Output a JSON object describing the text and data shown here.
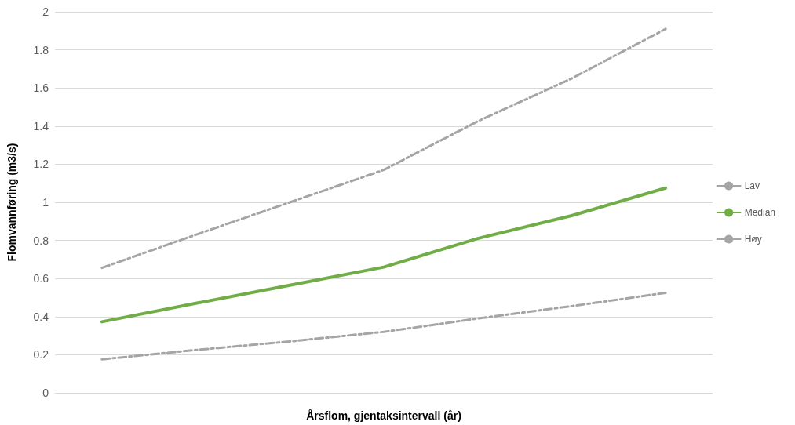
{
  "chart_data": {
    "type": "line",
    "xlabel": "Årsflom, gjentaksintervall (år)",
    "ylabel": "Flomvannføring (m3/s)",
    "categories": [
      null,
      null,
      null,
      null,
      null,
      null,
      null
    ],
    "series": [
      {
        "name": "Lav",
        "color": "#a5a5a5",
        "line_style": "dashed",
        "values": [
          0.176,
          0.225,
          0.27,
          0.32,
          0.39,
          0.455,
          0.525
        ]
      },
      {
        "name": "Median",
        "color": "#70ad47",
        "line_style": "solid",
        "values": [
          0.373,
          0.47,
          0.565,
          0.66,
          0.81,
          0.93,
          1.075
        ]
      },
      {
        "name": "Høy",
        "color": "#a5a5a5",
        "line_style": "dashed",
        "values": [
          0.656,
          0.83,
          1.0,
          1.17,
          1.425,
          1.65,
          1.91
        ]
      }
    ],
    "ylim": [
      0,
      2
    ],
    "yticks": [
      0,
      0.2,
      0.4,
      0.6,
      0.8,
      1,
      1.2,
      1.4,
      1.6,
      1.8,
      2
    ],
    "grid": "y",
    "legend": "right",
    "marker": "none"
  }
}
